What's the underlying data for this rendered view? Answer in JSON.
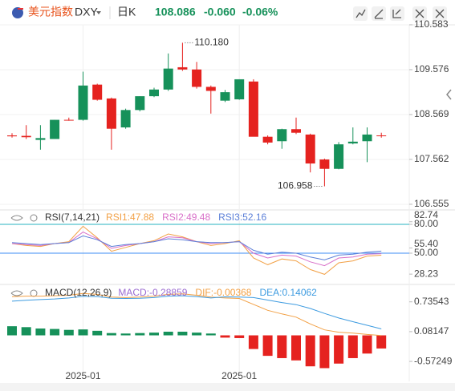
{
  "header": {
    "title": "美元指数",
    "symbol": "DXY",
    "period": "日K",
    "price": "108.086",
    "change": "-0.060",
    "change_pct": "-0.06%"
  },
  "chart_data": [
    {
      "type": "candlestick",
      "categories": [
        null,
        null,
        null,
        null,
        null,
        "2025-01",
        null,
        null,
        null,
        null,
        null,
        null,
        null,
        null,
        null,
        null,
        "2025-01",
        null,
        null,
        null,
        null,
        null,
        null,
        null,
        null,
        null,
        null
      ],
      "open": [
        108.1,
        108.09,
        108.0,
        108.02,
        108.45,
        108.45,
        109.24,
        108.93,
        108.28,
        108.67,
        108.98,
        109.13,
        109.63,
        109.58,
        109.19,
        108.88,
        108.91,
        109.31,
        108.07,
        107.97,
        108.24,
        108.12,
        107.56,
        107.35,
        107.92,
        107.97,
        108.1
      ],
      "high": [
        108.15,
        108.33,
        108.33,
        108.45,
        108.5,
        109.53,
        109.26,
        108.95,
        108.7,
        108.98,
        109.17,
        109.94,
        110.18,
        109.75,
        109.22,
        109.12,
        109.36,
        109.36,
        108.1,
        108.25,
        108.5,
        108.14,
        107.58,
        107.95,
        108.28,
        108.28,
        108.16
      ],
      "low": [
        108.05,
        108.02,
        107.78,
        108.02,
        108.43,
        108.43,
        108.88,
        107.78,
        108.25,
        108.64,
        108.96,
        109.1,
        109.55,
        109.15,
        108.59,
        108.85,
        108.9,
        108.1,
        107.9,
        107.8,
        108.13,
        107.27,
        106.958,
        107.34,
        107.9,
        107.5,
        108.05
      ],
      "close": [
        108.08,
        108.06,
        108.04,
        108.45,
        108.44,
        109.22,
        108.9,
        108.25,
        108.67,
        108.98,
        109.13,
        109.6,
        109.58,
        109.19,
        109.1,
        109.07,
        109.36,
        108.07,
        107.94,
        108.24,
        108.16,
        107.47,
        107.35,
        107.9,
        107.96,
        108.12,
        108.086
      ],
      "up_color": "#16915a",
      "down_color": "#e5221f",
      "ylim": [
        106.5,
        110.6
      ],
      "yticks": [
        106.555,
        107.562,
        108.569,
        109.576,
        110.583
      ],
      "grid": true,
      "annotations": [
        {
          "value": 110.18,
          "label": "110.180",
          "of": "high"
        },
        {
          "value": 106.958,
          "label": "106.958",
          "of": "low"
        }
      ]
    },
    {
      "type": "line",
      "title": "RSI(7,14,21)",
      "ylim": [
        20,
        90
      ],
      "yticks": [
        28.23,
        {
          "value": 50,
          "label": "50.00"
        },
        {
          "value": 55.4,
          "label": "55.40"
        },
        {
          "value": 80,
          "label": "80.00"
        },
        82.74
      ],
      "tick_line_colors": [
        "none",
        "#3d8ef5",
        "none",
        "#27b3c2",
        "none"
      ],
      "series": [
        {
          "name": "RSI1:47.88",
          "color": "#f2a045",
          "values": [
            60,
            58,
            57,
            60,
            62,
            78,
            66,
            52,
            56,
            60,
            63,
            70,
            67,
            62,
            58,
            60,
            63,
            45,
            38,
            44,
            42,
            33,
            28,
            40,
            42,
            47,
            47.88
          ]
        },
        {
          "name": "RSI2:49.48",
          "color": "#d86fc8",
          "values": [
            60,
            59,
            58,
            60,
            61,
            72,
            65,
            55,
            58,
            60,
            62,
            67,
            66,
            62,
            60,
            61,
            62,
            50,
            45,
            48,
            47,
            41,
            37,
            45,
            46,
            49,
            49.48
          ]
        },
        {
          "name": "RSI3:52.16",
          "color": "#5b7fd8",
          "values": [
            61,
            60,
            59,
            60,
            61,
            68,
            64,
            57,
            59,
            60,
            62,
            65,
            64,
            62,
            61,
            61,
            62,
            53,
            49,
            51,
            50,
            46,
            43,
            48,
            49,
            51,
            52.16
          ]
        }
      ]
    },
    {
      "type": "macd",
      "title": "MACD(12,26,9)",
      "ylim": [
        -0.87,
        1.1
      ],
      "yticks": [
        -0.57249,
        0.08147,
        0.73543
      ],
      "up_color": "#16915a",
      "down_color": "#e5221f",
      "series": [
        {
          "name": "MACD:-0.28859",
          "color": "#9b6bd0",
          "kind": "bar",
          "values": [
            0.2,
            0.18,
            0.15,
            0.14,
            0.12,
            0.13,
            0.1,
            0.05,
            0.04,
            0.05,
            0.06,
            0.08,
            0.08,
            0.06,
            0.04,
            -0.05,
            -0.06,
            -0.3,
            -0.45,
            -0.5,
            -0.55,
            -0.68,
            -0.72,
            -0.62,
            -0.5,
            -0.4,
            -0.28859
          ]
        },
        {
          "name": "DIF:-0.00368",
          "color": "#f2a045",
          "kind": "line",
          "values": [
            0.85,
            0.86,
            0.86,
            0.87,
            0.88,
            0.92,
            0.9,
            0.84,
            0.83,
            0.84,
            0.86,
            0.9,
            0.91,
            0.88,
            0.84,
            0.82,
            0.81,
            0.68,
            0.55,
            0.47,
            0.4,
            0.25,
            0.12,
            0.07,
            0.05,
            0.02,
            -0.00368
          ]
        },
        {
          "name": "DEA:0.14062",
          "color": "#3d9be0",
          "kind": "line",
          "values": [
            0.75,
            0.77,
            0.785,
            0.8,
            0.82,
            0.855,
            0.85,
            0.815,
            0.81,
            0.815,
            0.83,
            0.86,
            0.87,
            0.85,
            0.82,
            0.845,
            0.84,
            0.83,
            0.775,
            0.72,
            0.675,
            0.59,
            0.48,
            0.38,
            0.3,
            0.22,
            0.14062
          ]
        }
      ]
    }
  ]
}
